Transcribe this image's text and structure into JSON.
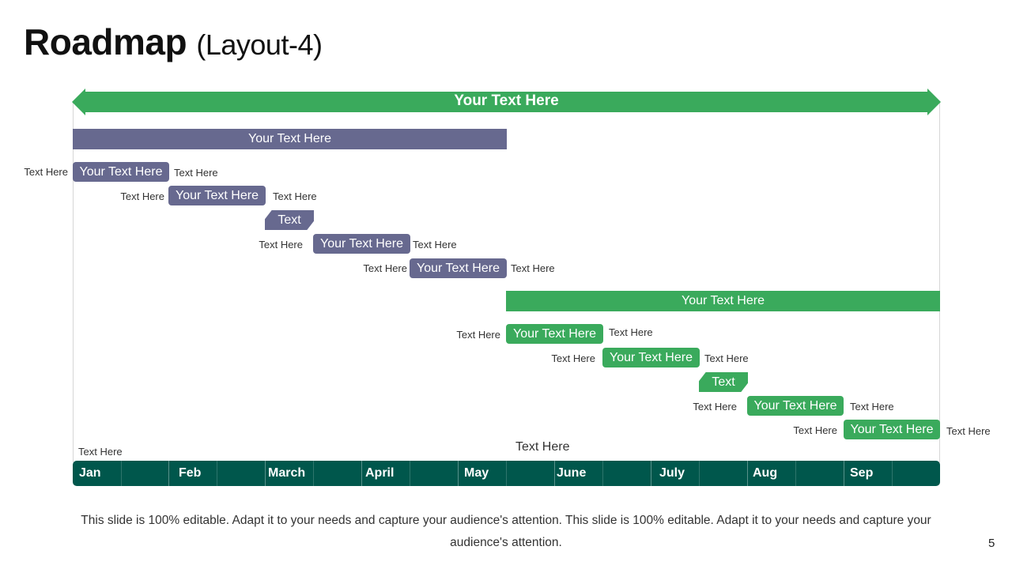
{
  "title": {
    "main": "Roadmap",
    "sub": "(Layout-4)"
  },
  "header_bar": "Your Text Here",
  "phase_purple": "Your Text Here",
  "phase_green": "Your Text Here",
  "purple_tasks": [
    {
      "left": "Text Here",
      "label": "Your Text Here",
      "right": "Text Here"
    },
    {
      "left": "Text Here",
      "label": "Your Text Here",
      "right": "Text Here"
    },
    {
      "label": "Text"
    },
    {
      "left": "Text Here",
      "label": "Your Text Here",
      "right": "Text Here"
    },
    {
      "left": "Text Here",
      "label": "Your Text Here",
      "right": "Text Here"
    }
  ],
  "green_tasks": [
    {
      "left": "Text Here",
      "label": "Your Text Here",
      "right": "Text Here"
    },
    {
      "left": "Text Here",
      "label": "Your Text Here",
      "right": "Text Here"
    },
    {
      "label": "Text"
    },
    {
      "left": "Text Here",
      "label": "Your Text Here",
      "right": "Text Here"
    },
    {
      "left": "Text Here",
      "label": "Your Text Here",
      "right": "Text Here"
    }
  ],
  "bottom_left_note": "Text Here",
  "bottom_center_note": "Text Here",
  "months": [
    "Jan",
    "Feb",
    "March",
    "April",
    "May",
    "June",
    "July",
    "Aug",
    "Sep"
  ],
  "footer": "This slide is 100% editable. Adapt it to your needs and capture your audience's attention. This slide is 100% editable. Adapt it to your needs and capture your audience's attention.",
  "page_number": "5",
  "colors": {
    "purple": "#67698f",
    "green": "#3aaa5c",
    "dark_green": "#00574c"
  }
}
